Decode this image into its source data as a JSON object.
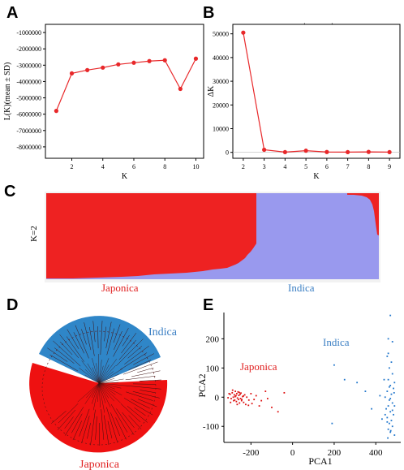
{
  "panels": {
    "A": "A",
    "B": "B",
    "C": "C",
    "D": "D",
    "E": "E"
  },
  "colors": {
    "line_red": "#e8282a",
    "japonica_red": "#ee2222",
    "indica_blue": "#9999ee",
    "tree_blue": "#2f86c8",
    "pca_red": "#dd1111",
    "pca_blue": "#2277cc",
    "label_red": "#e02020",
    "label_blue": "#3b7fc4"
  },
  "chart_data": [
    {
      "id": "A",
      "type": "line",
      "xlabel": "K",
      "ylabel": "L(K)(mean ± SD)",
      "x": [
        1,
        2,
        3,
        4,
        5,
        6,
        7,
        8,
        9,
        10
      ],
      "values": [
        -5800000,
        -3500000,
        -3300000,
        -3150000,
        -2950000,
        -2850000,
        -2750000,
        -2700000,
        -4450000,
        -2600000
      ],
      "xlim": [
        0.3,
        10.5
      ],
      "ylim": [
        -8700000,
        -500000
      ],
      "xticks": [
        "2",
        "4",
        "6",
        "8",
        "10"
      ],
      "xtick_values": [
        2,
        4,
        6,
        8,
        10
      ],
      "yticks": [
        "-1000000",
        "-2000000",
        "-3000000",
        "-4000000",
        "-5000000",
        "-6000000",
        "-7000000",
        "-8000000"
      ],
      "ytick_values": [
        -1000000,
        -2000000,
        -3000000,
        -4000000,
        -5000000,
        -6000000,
        -7000000,
        -8000000
      ]
    },
    {
      "id": "B",
      "type": "line",
      "xlabel": "K",
      "ylabel": "ΔK",
      "x": [
        2,
        3,
        4,
        5,
        6,
        7,
        8,
        9
      ],
      "values": [
        50500,
        1100,
        100,
        700,
        150,
        100,
        200,
        100
      ],
      "xlim": [
        1.5,
        9.5
      ],
      "ylim": [
        -2500,
        54000
      ],
      "xticks": [
        "2",
        "3",
        "4",
        "5",
        "6",
        "7",
        "8",
        "9"
      ],
      "xtick_values": [
        2,
        3,
        4,
        5,
        6,
        7,
        8,
        9
      ],
      "yticks": [
        "50000",
        "40000",
        "30000",
        "20000",
        "10000",
        "0"
      ],
      "ytick_values": [
        50000,
        40000,
        30000,
        20000,
        10000,
        0
      ]
    },
    {
      "id": "C",
      "type": "bar",
      "ylabel": "K=2",
      "groups": [
        "Japonica",
        "Indica"
      ]
    },
    {
      "id": "D",
      "type": "tree",
      "groups": [
        "Indica",
        "Japonica"
      ]
    },
    {
      "id": "E",
      "type": "scatter",
      "xlabel": "PCA1",
      "ylabel": "PCA2",
      "xlim": [
        -330,
        520
      ],
      "ylim": [
        -155,
        290
      ],
      "xticks": [
        "-200",
        "0",
        "200",
        "400"
      ],
      "xtick_values": [
        -200,
        0,
        200,
        400
      ],
      "yticks": [
        "200",
        "100",
        "0",
        "-100"
      ],
      "ytick_values": [
        200,
        100,
        0,
        -100
      ],
      "series": [
        {
          "name": "Japonica",
          "color": "#dd1111",
          "points": [
            [
              -300,
              10
            ],
            [
              -295,
              -5
            ],
            [
              -290,
              15
            ],
            [
              -285,
              0
            ],
            [
              -280,
              8
            ],
            [
              -278,
              -10
            ],
            [
              -275,
              20
            ],
            [
              -272,
              5
            ],
            [
              -270,
              -15
            ],
            [
              -268,
              12
            ],
            [
              -265,
              -3
            ],
            [
              -262,
              18
            ],
            [
              -260,
              -8
            ],
            [
              -258,
              6
            ],
            [
              -255,
              -20
            ],
            [
              -252,
              10
            ],
            [
              -250,
              -5
            ],
            [
              -248,
              14
            ],
            [
              -245,
              -12
            ],
            [
              -240,
              2
            ],
            [
              -235,
              -18
            ],
            [
              -230,
              8
            ],
            [
              -225,
              -25
            ],
            [
              -220,
              0
            ],
            [
              -210,
              -10
            ],
            [
              -200,
              12
            ],
            [
              -195,
              -22
            ],
            [
              -185,
              -8
            ],
            [
              -175,
              5
            ],
            [
              -160,
              -30
            ],
            [
              -150,
              -12
            ],
            [
              -130,
              20
            ],
            [
              -120,
              -5
            ],
            [
              -100,
              -35
            ],
            [
              -70,
              -50
            ],
            [
              -40,
              15
            ],
            [
              -310,
              -2
            ],
            [
              -305,
              12
            ],
            [
              -298,
              -18
            ],
            [
              -288,
              24
            ],
            [
              -283,
              -12
            ],
            [
              -276,
              2
            ],
            [
              -266,
              -25
            ],
            [
              -256,
              16
            ],
            [
              -244,
              -8
            ],
            [
              -236,
              4
            ],
            [
              -212,
              -28
            ]
          ]
        },
        {
          "name": "Indica",
          "color": "#2277cc",
          "points": [
            [
              470,
              280
            ],
            [
              460,
              200
            ],
            [
              480,
              190
            ],
            [
              455,
              140
            ],
            [
              475,
              120
            ],
            [
              465,
              100
            ],
            [
              480,
              80
            ],
            [
              460,
              60
            ],
            [
              470,
              40
            ],
            [
              485,
              30
            ],
            [
              455,
              20
            ],
            [
              475,
              10
            ],
            [
              465,
              -10
            ],
            [
              480,
              -20
            ],
            [
              460,
              -30
            ],
            [
              470,
              -50
            ],
            [
              485,
              -60
            ],
            [
              455,
              -70
            ],
            [
              475,
              -80
            ],
            [
              465,
              -90
            ],
            [
              480,
              -100
            ],
            [
              460,
              -110
            ],
            [
              470,
              -120
            ],
            [
              490,
              -130
            ],
            [
              450,
              -40
            ],
            [
              445,
              0
            ],
            [
              490,
              50
            ],
            [
              440,
              60
            ],
            [
              490,
              -30
            ],
            [
              445,
              -60
            ],
            [
              200,
              110
            ],
            [
              250,
              60
            ],
            [
              310,
              50
            ],
            [
              350,
              20
            ],
            [
              380,
              -40
            ],
            [
              190,
              -90
            ],
            [
              420,
              5
            ],
            [
              430,
              -75
            ],
            [
              460,
              150
            ],
            [
              470,
              -5
            ],
            [
              480,
              -45
            ],
            [
              455,
              -85
            ],
            [
              465,
              35
            ],
            [
              472,
              -115
            ],
            [
              488,
              15
            ],
            [
              458,
              -140
            ]
          ]
        }
      ]
    }
  ],
  "labels": {
    "C_ylabel": "K=2",
    "C_japonica": "Japonica",
    "C_indica": "Indica",
    "D_indica": "Indica",
    "D_japonica": "Japonica",
    "E_japonica": "Japonica",
    "E_indica": "Indica"
  },
  "misc": {
    "b_dot1": "·",
    "b_dot2": "·"
  }
}
